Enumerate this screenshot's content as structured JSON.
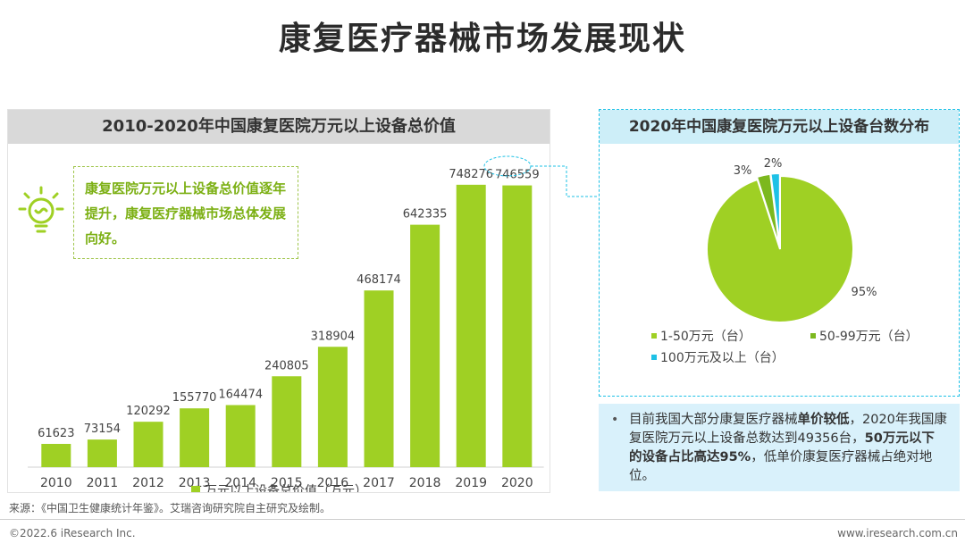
{
  "page": {
    "title": "康复医疗器械市场发展现状",
    "source": "来源：《中国卫生健康统计年鉴》。艾瑞咨询研究院自主研究及绘制。",
    "copyright": "©2022.6 iResearch Inc.",
    "website": "www.iresearch.com.cn"
  },
  "callout": {
    "text": "康复医院万元以上设备总价值逐年提升，康复医疗器械市场总体发展向好。"
  },
  "note": {
    "parts": [
      {
        "text": "目前我国大部分康复医疗器械",
        "bold": false
      },
      {
        "text": "单价较低",
        "bold": true
      },
      {
        "text": "，2020年我国康复医院万元以上设备总数达到49356台，",
        "bold": false
      },
      {
        "text": "50万元以下的设备占比高达95%",
        "bold": true
      },
      {
        "text": "，低单价康复医疗器械占绝对地位。",
        "bold": false
      }
    ]
  },
  "colors": {
    "bar": "#9fd024",
    "pie_main": "#9fd024",
    "pie_mid": "#7cb81e",
    "pie_small": "#1ec1e6",
    "callout_text": "#7cb014"
  },
  "chart_data": [
    {
      "type": "bar",
      "title": "2010-2020年中国康复医院万元以上设备总价值",
      "categories": [
        "2010",
        "2011",
        "2012",
        "2013",
        "2014",
        "2015",
        "2016",
        "2017",
        "2018",
        "2019",
        "2020"
      ],
      "series": [
        {
          "name": "万元以上设备总价值（万元）",
          "values": [
            61623,
            73154,
            120292,
            155770,
            164474,
            240805,
            318904,
            468174,
            642335,
            748276,
            746559
          ]
        }
      ],
      "ylim": [
        0,
        800000
      ],
      "legend": "bottom",
      "grid": false
    },
    {
      "type": "pie",
      "title": "2020年中国康复医院万元以上设备台数分布",
      "labels": [
        "1-50万元（台）",
        "50-99万元（台）",
        "100万元及以上（台）"
      ],
      "values": [
        95,
        3,
        2
      ],
      "value_labels": [
        "95%",
        "3%",
        "2%"
      ],
      "legend": "bottom"
    }
  ]
}
